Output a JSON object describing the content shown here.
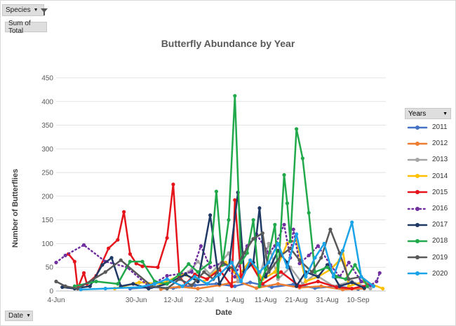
{
  "filters": {
    "species_label": "Species",
    "sum_label": "Sum of Total",
    "date_label": "Date"
  },
  "legend": {
    "header": "Years"
  },
  "chart_data": {
    "type": "line",
    "title": "Butterfly Abundance by Year",
    "xlabel": "Date",
    "ylabel": "Number of Butterflies",
    "ylim": [
      0,
      450
    ],
    "yticks": [
      0,
      50,
      100,
      150,
      200,
      250,
      300,
      350,
      400,
      450
    ],
    "xlim": [
      "06-04",
      "09-19"
    ],
    "xticks": [
      {
        "label": "4-Jun",
        "date": "06-04"
      },
      {
        "label": "30-Jun",
        "date": "06-30"
      },
      {
        "label": "12-Jul",
        "date": "07-12"
      },
      {
        "label": "22-Jul",
        "date": "07-22"
      },
      {
        "label": "1-Aug",
        "date": "08-01"
      },
      {
        "label": "11-Aug",
        "date": "08-11"
      },
      {
        "label": "21-Aug",
        "date": "08-21"
      },
      {
        "label": "31-Aug",
        "date": "08-31"
      },
      {
        "label": "10-Sep",
        "date": "09-10"
      }
    ],
    "grid": "horizontal",
    "legend_position": "right",
    "series": [
      {
        "name": "2011",
        "color": "#4472c4",
        "dotted": false,
        "points": [
          [
            "06-28",
            5
          ],
          [
            "07-05",
            8
          ],
          [
            "07-12",
            6
          ],
          [
            "07-19",
            12
          ],
          [
            "07-26",
            15
          ],
          [
            "08-01",
            10
          ],
          [
            "08-06",
            18
          ],
          [
            "08-13",
            8
          ],
          [
            "08-20",
            14
          ],
          [
            "08-27",
            6
          ],
          [
            "09-03",
            10
          ],
          [
            "09-10",
            4
          ]
        ]
      },
      {
        "name": "2012",
        "color": "#ed7d31",
        "dotted": false,
        "points": [
          [
            "07-08",
            4
          ],
          [
            "07-14",
            9
          ],
          [
            "07-20",
            5
          ],
          [
            "07-27",
            12
          ],
          [
            "08-02",
            20
          ],
          [
            "08-08",
            6
          ],
          [
            "08-15",
            15
          ],
          [
            "08-22",
            7
          ],
          [
            "08-29",
            10
          ],
          [
            "09-05",
            3
          ],
          [
            "09-12",
            5
          ]
        ]
      },
      {
        "name": "2013",
        "color": "#a5a5a5",
        "dotted": false,
        "points": [
          [
            "07-10",
            5
          ],
          [
            "07-17",
            40
          ],
          [
            "07-20",
            62
          ],
          [
            "07-24",
            35
          ],
          [
            "07-30",
            80
          ],
          [
            "08-02",
            20
          ],
          [
            "08-06",
            60
          ],
          [
            "08-09",
            30
          ],
          [
            "08-12",
            100
          ],
          [
            "08-15",
            25
          ],
          [
            "08-19",
            50
          ],
          [
            "08-23",
            15
          ],
          [
            "08-27",
            35
          ],
          [
            "09-02",
            10
          ],
          [
            "09-08",
            20
          ],
          [
            "09-14",
            5
          ]
        ]
      },
      {
        "name": "2014",
        "color": "#ffc000",
        "dotted": false,
        "points": [
          [
            "06-23",
            5
          ],
          [
            "07-01",
            18
          ],
          [
            "07-08",
            15
          ],
          [
            "07-15",
            35
          ],
          [
            "07-22",
            20
          ],
          [
            "07-29",
            60
          ],
          [
            "08-02",
            30
          ],
          [
            "08-06",
            65
          ],
          [
            "08-10",
            25
          ],
          [
            "08-14",
            40
          ],
          [
            "08-18",
            100
          ],
          [
            "08-21",
            108
          ],
          [
            "08-24",
            20
          ],
          [
            "08-28",
            30
          ],
          [
            "09-01",
            45
          ],
          [
            "09-04",
            65
          ],
          [
            "09-05",
            85
          ],
          [
            "09-07",
            10
          ],
          [
            "09-12",
            20
          ],
          [
            "09-18",
            5
          ]
        ]
      },
      {
        "name": "2015",
        "color": "#e5141b",
        "dotted": false,
        "points": [
          [
            "06-08",
            78
          ],
          [
            "06-10",
            62
          ],
          [
            "06-11",
            5
          ],
          [
            "06-13",
            38
          ],
          [
            "06-14",
            15
          ],
          [
            "06-17",
            32
          ],
          [
            "06-21",
            90
          ],
          [
            "06-24",
            108
          ],
          [
            "06-26",
            167
          ],
          [
            "06-28",
            78
          ],
          [
            "06-30",
            58
          ],
          [
            "07-02",
            52
          ],
          [
            "07-07",
            50
          ],
          [
            "07-10",
            112
          ],
          [
            "07-12",
            225
          ],
          [
            "07-14",
            30
          ],
          [
            "07-16",
            15
          ],
          [
            "07-19",
            35
          ],
          [
            "07-23",
            25
          ],
          [
            "07-27",
            45
          ],
          [
            "07-31",
            10
          ],
          [
            "08-01",
            192
          ],
          [
            "08-03",
            30
          ],
          [
            "08-06",
            60
          ],
          [
            "08-10",
            15
          ],
          [
            "08-16",
            40
          ],
          [
            "08-22",
            10
          ],
          [
            "08-28",
            20
          ],
          [
            "09-03",
            8
          ],
          [
            "09-08",
            5
          ],
          [
            "09-13",
            12
          ]
        ]
      },
      {
        "name": "2016",
        "color": "#7030a0",
        "dotted": true,
        "points": [
          [
            "06-04",
            60
          ],
          [
            "06-07",
            75
          ],
          [
            "06-13",
            97
          ],
          [
            "06-20",
            62
          ],
          [
            "06-27",
            50
          ],
          [
            "07-04",
            10
          ],
          [
            "07-10",
            32
          ],
          [
            "07-18",
            40
          ],
          [
            "07-21",
            95
          ],
          [
            "07-24",
            50
          ],
          [
            "07-28",
            60
          ],
          [
            "08-01",
            30
          ],
          [
            "08-05",
            95
          ],
          [
            "08-08",
            120
          ],
          [
            "08-12",
            80
          ],
          [
            "08-14",
            95
          ],
          [
            "08-17",
            140
          ],
          [
            "08-19",
            70
          ],
          [
            "08-20",
            130
          ],
          [
            "08-22",
            58
          ],
          [
            "08-25",
            75
          ],
          [
            "08-28",
            95
          ],
          [
            "09-01",
            55
          ],
          [
            "09-04",
            30
          ],
          [
            "09-07",
            60
          ],
          [
            "09-11",
            20
          ],
          [
            "09-14",
            12
          ],
          [
            "09-16",
            20
          ],
          [
            "09-17",
            38
          ]
        ]
      },
      {
        "name": "2017",
        "color": "#1f3864",
        "dotted": false,
        "points": [
          [
            "06-06",
            8
          ],
          [
            "06-10",
            5
          ],
          [
            "06-15",
            10
          ],
          [
            "06-19",
            55
          ],
          [
            "06-22",
            70
          ],
          [
            "06-25",
            10
          ],
          [
            "06-29",
            15
          ],
          [
            "07-04",
            5
          ],
          [
            "07-10",
            15
          ],
          [
            "07-16",
            35
          ],
          [
            "07-20",
            20
          ],
          [
            "07-24",
            160
          ],
          [
            "07-27",
            15
          ],
          [
            "07-30",
            48
          ],
          [
            "08-02",
            208
          ],
          [
            "08-04",
            40
          ],
          [
            "08-07",
            60
          ],
          [
            "08-09",
            175
          ],
          [
            "08-11",
            30
          ],
          [
            "08-15",
            85
          ],
          [
            "08-18",
            60
          ],
          [
            "08-21",
            10
          ],
          [
            "08-24",
            40
          ],
          [
            "08-28",
            30
          ],
          [
            "08-31",
            55
          ],
          [
            "09-04",
            10
          ],
          [
            "09-08",
            18
          ],
          [
            "09-12",
            6
          ]
        ]
      },
      {
        "name": "2018",
        "color": "#21a94c",
        "dotted": false,
        "points": [
          [
            "06-10",
            10
          ],
          [
            "06-17",
            20
          ],
          [
            "06-24",
            15
          ],
          [
            "06-28",
            62
          ],
          [
            "07-02",
            62
          ],
          [
            "07-06",
            20
          ],
          [
            "07-10",
            15
          ],
          [
            "07-14",
            35
          ],
          [
            "07-17",
            57
          ],
          [
            "07-20",
            40
          ],
          [
            "07-24",
            60
          ],
          [
            "07-26",
            210
          ],
          [
            "07-28",
            55
          ],
          [
            "07-30",
            150
          ],
          [
            "08-01",
            412
          ],
          [
            "08-03",
            60
          ],
          [
            "08-05",
            80
          ],
          [
            "08-07",
            150
          ],
          [
            "08-09",
            10
          ],
          [
            "08-11",
            45
          ],
          [
            "08-14",
            140
          ],
          [
            "08-15",
            30
          ],
          [
            "08-17",
            245
          ],
          [
            "08-18",
            185
          ],
          [
            "08-19",
            105
          ],
          [
            "08-21",
            342
          ],
          [
            "08-23",
            280
          ],
          [
            "08-25",
            165
          ],
          [
            "08-27",
            40
          ],
          [
            "08-31",
            50
          ],
          [
            "09-03",
            30
          ],
          [
            "09-06",
            25
          ],
          [
            "09-09",
            55
          ],
          [
            "09-13",
            10
          ]
        ]
      },
      {
        "name": "2019",
        "color": "#595959",
        "dotted": false,
        "points": [
          [
            "06-04",
            20
          ],
          [
            "06-07",
            10
          ],
          [
            "06-11",
            5
          ],
          [
            "06-20",
            40
          ],
          [
            "06-25",
            65
          ],
          [
            "07-05",
            10
          ],
          [
            "07-10",
            5
          ],
          [
            "07-14",
            25
          ],
          [
            "07-18",
            12
          ],
          [
            "07-22",
            40
          ],
          [
            "07-25",
            25
          ],
          [
            "07-28",
            60
          ],
          [
            "08-01",
            45
          ],
          [
            "08-04",
            80
          ],
          [
            "08-07",
            110
          ],
          [
            "08-10",
            122
          ],
          [
            "08-12",
            40
          ],
          [
            "08-16",
            75
          ],
          [
            "08-19",
            90
          ],
          [
            "08-22",
            65
          ],
          [
            "08-26",
            40
          ],
          [
            "08-29",
            70
          ],
          [
            "09-01",
            130
          ],
          [
            "09-04",
            80
          ],
          [
            "09-07",
            25
          ],
          [
            "09-11",
            30
          ],
          [
            "09-15",
            10
          ]
        ]
      },
      {
        "name": "2020",
        "color": "#1aa3e8",
        "dotted": false,
        "points": [
          [
            "06-12",
            3
          ],
          [
            "06-20",
            5
          ],
          [
            "07-01",
            8
          ],
          [
            "07-06",
            15
          ],
          [
            "07-10",
            25
          ],
          [
            "07-15",
            10
          ],
          [
            "07-19",
            30
          ],
          [
            "07-23",
            15
          ],
          [
            "07-27",
            35
          ],
          [
            "07-31",
            60
          ],
          [
            "08-03",
            20
          ],
          [
            "08-06",
            65
          ],
          [
            "08-09",
            40
          ],
          [
            "08-12",
            60
          ],
          [
            "08-15",
            100
          ],
          [
            "08-18",
            50
          ],
          [
            "08-21",
            120
          ],
          [
            "08-24",
            30
          ],
          [
            "08-27",
            70
          ],
          [
            "08-30",
            100
          ],
          [
            "09-02",
            30
          ],
          [
            "09-05",
            85
          ],
          [
            "09-08",
            145
          ],
          [
            "09-11",
            30
          ],
          [
            "09-15",
            10
          ]
        ]
      }
    ]
  }
}
